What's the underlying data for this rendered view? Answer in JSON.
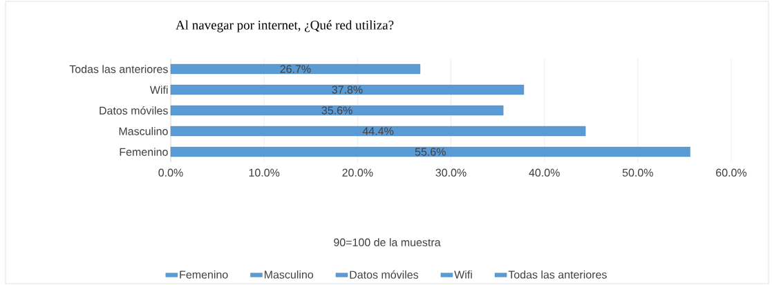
{
  "chart_data": {
    "type": "bar",
    "orientation": "horizontal",
    "title": "Al navegar por internet, ¿Qué red utiliza?",
    "annotations": [
      "90=100 de la muestra"
    ],
    "categories": [
      "Todas las anteriores",
      "Wifi",
      "Datos móviles",
      "Masculino",
      "Femenino"
    ],
    "series": [
      {
        "name": "Femenino",
        "color": "#5b9bd5",
        "values": [
          null,
          null,
          null,
          null,
          55.6
        ],
        "value_labels": [
          null,
          null,
          null,
          null,
          "55.6%"
        ]
      },
      {
        "name": "Masculino",
        "color": "#5b9bd5",
        "values": [
          null,
          null,
          null,
          44.4,
          null
        ],
        "value_labels": [
          null,
          null,
          null,
          "44.4%",
          null
        ]
      },
      {
        "name": "Datos móviles",
        "color": "#5b9bd5",
        "values": [
          null,
          null,
          35.6,
          null,
          null
        ],
        "value_labels": [
          null,
          null,
          "35.6%",
          null,
          null
        ]
      },
      {
        "name": "Wifi",
        "color": "#5b9bd5",
        "values": [
          null,
          37.8,
          null,
          null,
          null
        ],
        "value_labels": [
          null,
          "37.8%",
          null,
          null,
          null
        ]
      },
      {
        "name": "Todas las anteriores",
        "color": "#5b9bd5",
        "values": [
          26.7,
          null,
          null,
          null,
          null
        ],
        "value_labels": [
          "26.7%",
          null,
          null,
          null,
          null
        ]
      }
    ],
    "xlim": [
      0,
      60
    ],
    "xticks": [
      {
        "value": 0,
        "label": "0.0%"
      },
      {
        "value": 10,
        "label": "10.0%"
      },
      {
        "value": 20,
        "label": "20.0%"
      },
      {
        "value": 30,
        "label": "30.0%"
      },
      {
        "value": 40,
        "label": "40.0%"
      },
      {
        "value": 50,
        "label": "50.0%"
      },
      {
        "value": 60,
        "label": "60.0%"
      }
    ],
    "grid": "x",
    "legend": "bottom"
  }
}
